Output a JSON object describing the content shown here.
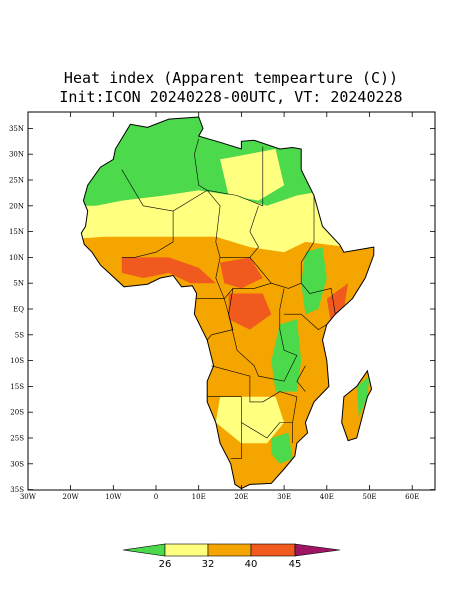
{
  "title": [
    "Heat index (Apparent tempearture (C))",
    "Init:ICON 20240228-00UTC, VT: 20240228"
  ],
  "x_axis_labels": [
    "30W",
    "20W",
    "10W",
    "0",
    "10E",
    "20E",
    "30E",
    "40E",
    "50E",
    "60E"
  ],
  "y_axis_labels": [
    "35N",
    "30N",
    "25N",
    "20N",
    "15N",
    "10N",
    "5N",
    "EQ",
    "5S",
    "10S",
    "15S",
    "20S",
    "25S",
    "30S",
    "35S"
  ],
  "colorbar_labels": [
    "26",
    "32",
    "40",
    "45"
  ]
}
